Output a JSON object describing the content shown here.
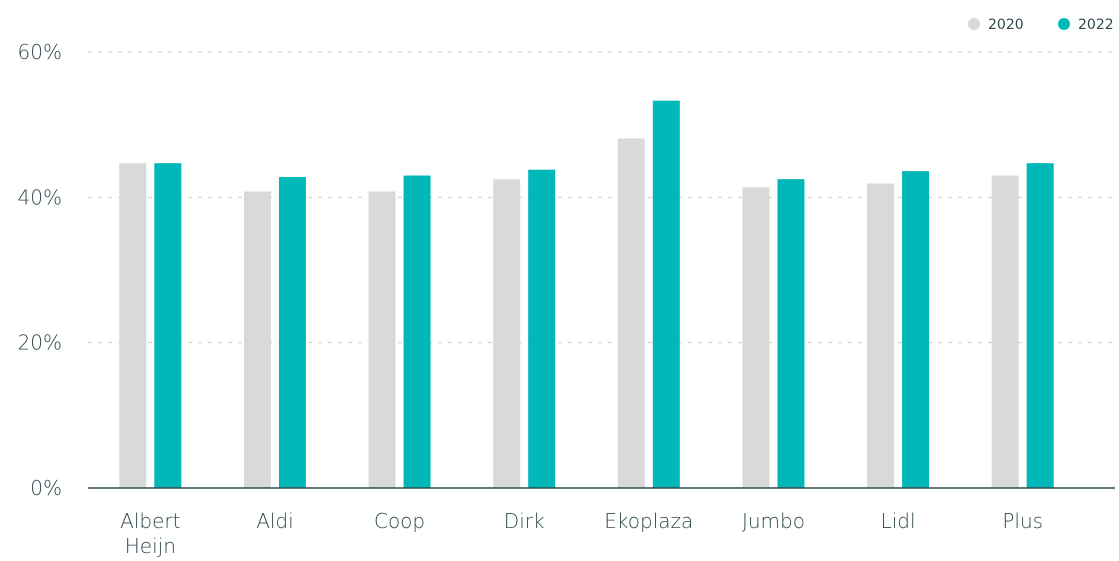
{
  "chart_data": {
    "type": "bar",
    "categories": [
      [
        "Albert",
        "Heijn"
      ],
      [
        "Aldi"
      ],
      [
        "Coop"
      ],
      [
        "Dirk"
      ],
      [
        "Ekoplaza"
      ],
      [
        "Jumbo"
      ],
      [
        "Lidl"
      ],
      [
        "Plus"
      ]
    ],
    "series": [
      {
        "name": "2020",
        "color": "#d9d9d9",
        "values": [
          44.7,
          40.8,
          40.8,
          42.5,
          48.1,
          41.4,
          41.9,
          43.0
        ]
      },
      {
        "name": "2022",
        "color": "#00b8b8",
        "values": [
          44.7,
          42.8,
          43.0,
          43.8,
          53.3,
          42.5,
          43.6,
          44.7
        ]
      }
    ],
    "ylim": [
      0,
      60
    ],
    "yticks": [
      0,
      20,
      40,
      60
    ],
    "ytick_labels": [
      "0%",
      "20%",
      "40%",
      "60%"
    ],
    "grid": true,
    "legend_position": "top-right",
    "axis_color": "#2f4a4c",
    "grid_color": "#cccccc",
    "title": "",
    "xlabel": "",
    "ylabel": ""
  }
}
